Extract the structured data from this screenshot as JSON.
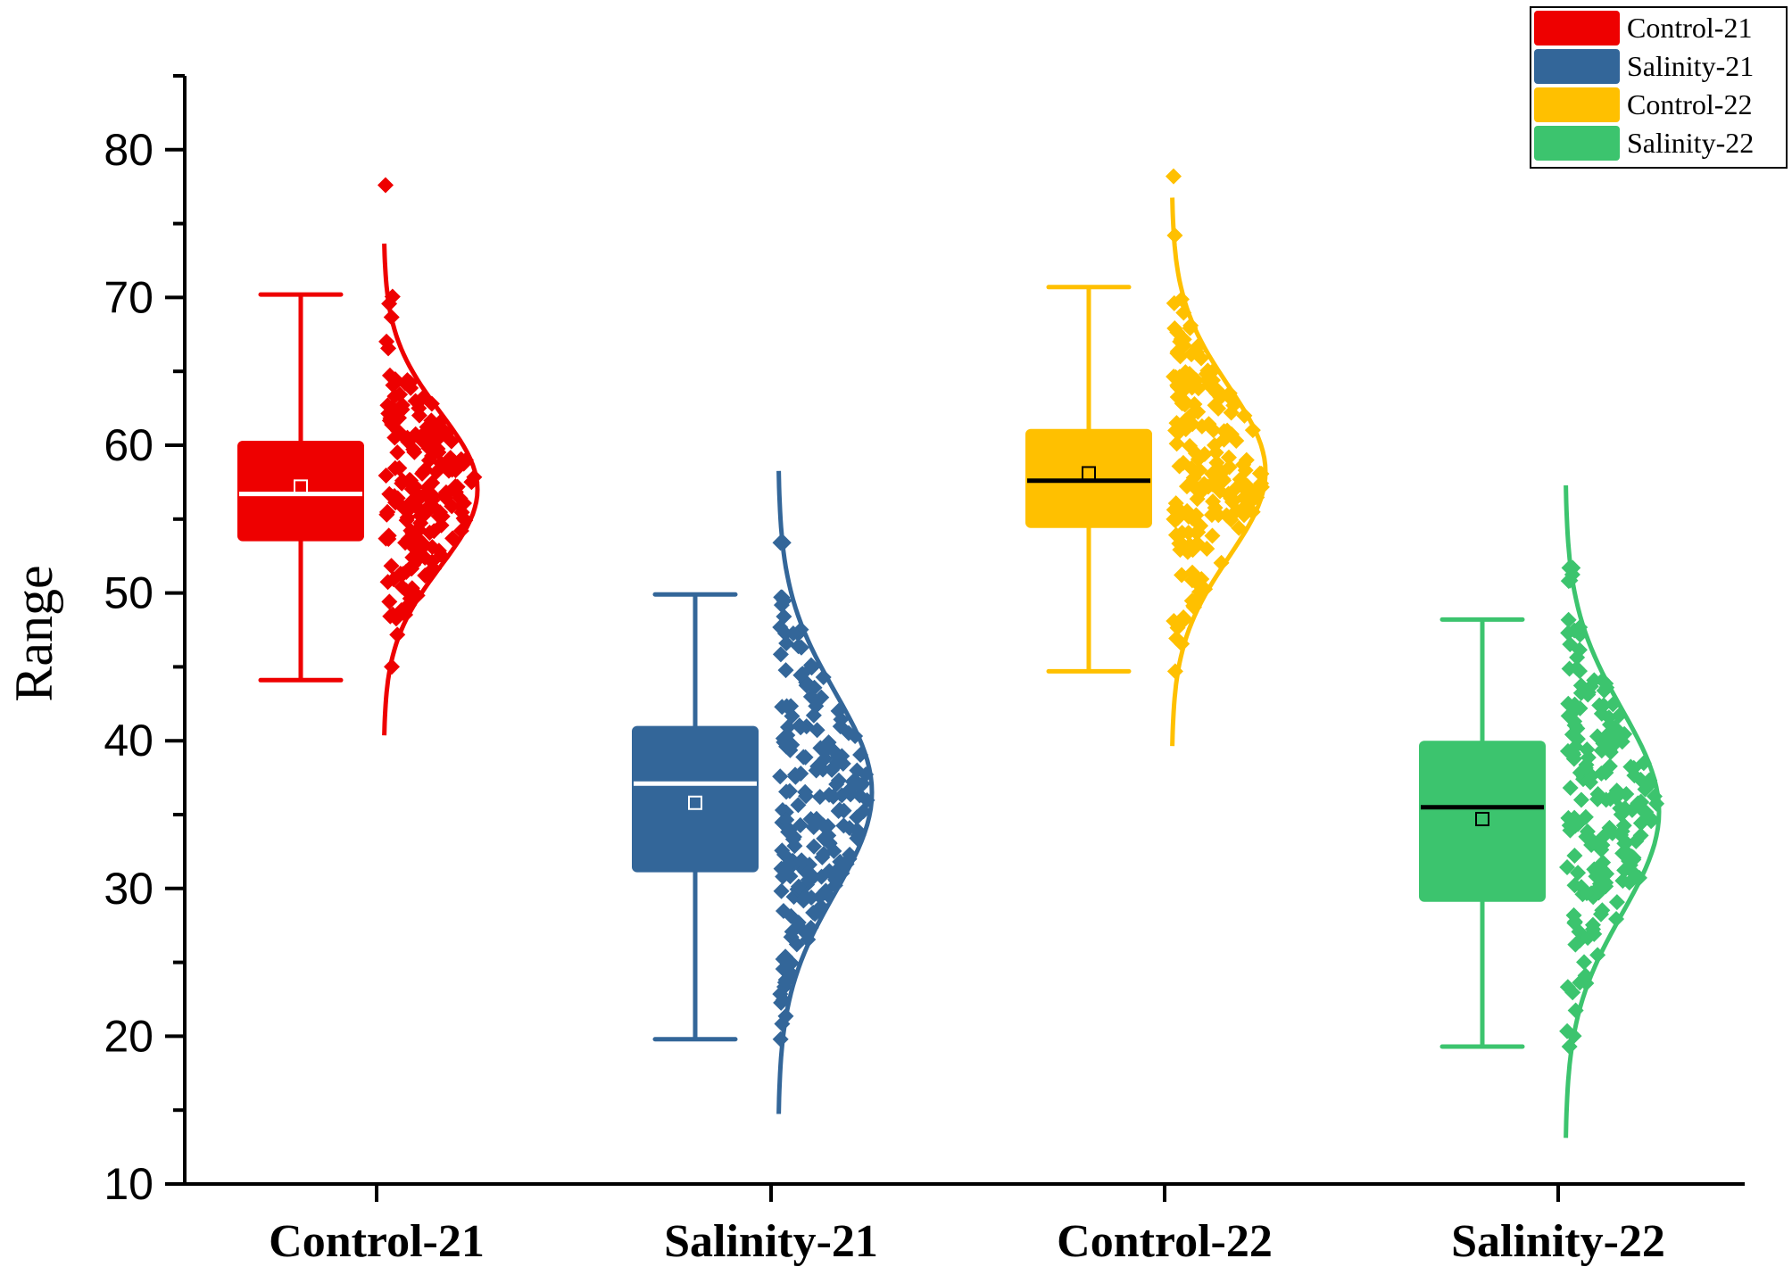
{
  "chart_data": {
    "type": "box",
    "title": "",
    "xlabel": "",
    "ylabel": "Range",
    "ylim": [
      10,
      85
    ],
    "yticks": [
      10,
      20,
      30,
      40,
      50,
      60,
      70,
      80
    ],
    "categories": [
      "Control-21",
      "Salinity-21",
      "Control-22",
      "Salinity-22"
    ],
    "legend": {
      "position": "top-right",
      "entries": [
        "Control-21",
        "Salinity-21",
        "Control-22",
        "Salinity-22"
      ]
    },
    "series": [
      {
        "name": "Control-21",
        "color": "#ee0000",
        "whisker_low": 44.1,
        "q1": 53.5,
        "median": 56.7,
        "q3": 60.3,
        "whisker_high": 70.2,
        "mean": 57.2,
        "outliers": [
          77.6
        ],
        "dist_mean": 57.0,
        "dist_sd": 5.2
      },
      {
        "name": "Salinity-21",
        "color": "#336699",
        "whisker_low": 19.8,
        "q1": 31.1,
        "median": 37.1,
        "q3": 41.0,
        "whisker_high": 49.9,
        "mean": 35.8,
        "outliers": [],
        "dist_mean": 36.5,
        "dist_sd": 6.8
      },
      {
        "name": "Control-22",
        "color": "#ffc000",
        "whisker_low": 44.7,
        "q1": 54.4,
        "median": 57.6,
        "q3": 61.1,
        "whisker_high": 70.7,
        "mean": 58.1,
        "outliers": [
          78.2
        ],
        "dist_mean": 58.2,
        "dist_sd": 5.8
      },
      {
        "name": "Salinity-22",
        "color": "#3cc46e",
        "whisker_low": 19.3,
        "q1": 29.1,
        "median": 35.5,
        "q3": 40.0,
        "whisker_high": 48.2,
        "mean": 34.7,
        "outliers": [],
        "dist_mean": 35.2,
        "dist_sd": 6.9
      }
    ]
  }
}
